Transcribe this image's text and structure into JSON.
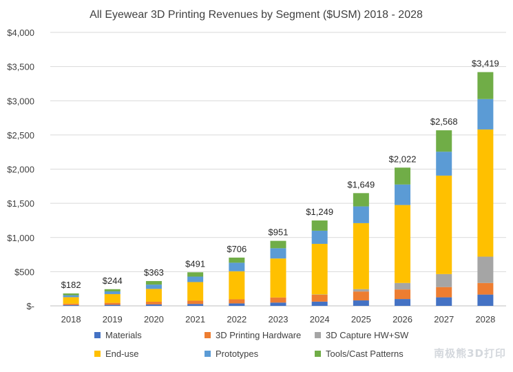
{
  "chart_data": {
    "type": "bar",
    "stacked": true,
    "title": "All Eyewear 3D Printing Revenues by Segment ($USM) 2018 - 2028",
    "categories": [
      "2018",
      "2019",
      "2020",
      "2021",
      "2022",
      "2023",
      "2024",
      "2025",
      "2026",
      "2027",
      "2028"
    ],
    "ylim": [
      0,
      4000
    ],
    "yticks": [
      0,
      500,
      1000,
      1500,
      2000,
      2500,
      3000,
      3500,
      4000
    ],
    "ytick_labels": [
      "$-",
      "$500",
      "$1,000",
      "$1,500",
      "$2,000",
      "$2,500",
      "$3,000",
      "$3,500",
      "$4,000"
    ],
    "grid": true,
    "legend_position": "bottom",
    "series": [
      {
        "name": "Materials",
        "color": "#4472c4",
        "values": [
          12,
          16,
          22,
          28,
          36,
          48,
          62,
          80,
          100,
          125,
          165
        ]
      },
      {
        "name": "3D Printing Hardware",
        "color": "#ed7d31",
        "values": [
          20,
          28,
          38,
          48,
          60,
          75,
          100,
          130,
          140,
          150,
          170
        ]
      },
      {
        "name": "3D Capture HW+SW",
        "color": "#a5a5a5",
        "values": [
          0,
          0,
          0,
          0,
          0,
          0,
          5,
          35,
          95,
          190,
          385
        ]
      },
      {
        "name": "End-use",
        "color": "#ffc000",
        "values": [
          95,
          128,
          188,
          272,
          410,
          570,
          740,
          965,
          1140,
          1440,
          1860
        ]
      },
      {
        "name": "Prototypes",
        "color": "#5b9bd5",
        "values": [
          28,
          40,
          63,
          80,
          125,
          150,
          192,
          245,
          300,
          350,
          445
        ]
      },
      {
        "name": "Tools/Cast Patterns",
        "color": "#70ad47",
        "values": [
          27,
          32,
          52,
          63,
          75,
          108,
          150,
          194,
          247,
          313,
          394
        ]
      }
    ],
    "totals": [
      182,
      244,
      363,
      491,
      706,
      951,
      1249,
      1649,
      2022,
      2568,
      3419
    ],
    "total_labels": [
      "$182",
      "$244",
      "$363",
      "$491",
      "$706",
      "$951",
      "$1,249",
      "$1,649",
      "$2,022",
      "$2,568",
      "$3,419"
    ]
  },
  "watermark_text": "南极熊3D打印"
}
